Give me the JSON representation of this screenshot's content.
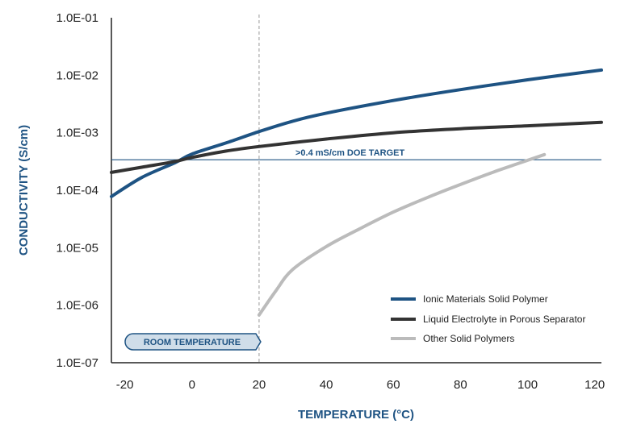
{
  "chart_data": {
    "type": "line",
    "title": "",
    "xlabel": "TEMPERATURE (°C)",
    "ylabel": "CONDUCTIVITY (S/cm)",
    "xlim": [
      -24,
      122
    ],
    "ylim_log10": [
      -7,
      -1
    ],
    "y_scale": "log",
    "x_ticks": [
      -20,
      0,
      20,
      40,
      60,
      80,
      100,
      120
    ],
    "x_tick_labels": [
      "-20",
      "0",
      "20",
      "40",
      "60",
      "80",
      "100",
      "120"
    ],
    "y_ticks_log10": [
      -7,
      -6,
      -5,
      -4,
      -3,
      -2,
      -1
    ],
    "y_tick_labels": [
      "1.0E-07",
      "1.0E-06",
      "1.0E-05",
      "1.0E-04",
      "1.0E-03",
      "1.0E-02",
      "1.0E-01"
    ],
    "grid": false,
    "legend_position": "bottom-right",
    "series": [
      {
        "name": "Ionic Materials Solid Polymer",
        "color": "#1e5383",
        "x": [
          -24,
          -15,
          -5,
          0,
          10,
          20,
          30,
          40,
          60,
          80,
          100,
          122
        ],
        "log10": [
          -4.11,
          -3.78,
          -3.52,
          -3.37,
          -3.18,
          -2.98,
          -2.8,
          -2.66,
          -2.44,
          -2.25,
          -2.08,
          -1.91
        ]
      },
      {
        "name": "Liquid Electrolyte in Porous Separator",
        "color": "#333333",
        "x": [
          -24,
          -15,
          -5,
          0,
          10,
          20,
          40,
          60,
          80,
          100,
          122
        ],
        "log10": [
          -3.69,
          -3.6,
          -3.5,
          -3.43,
          -3.32,
          -3.24,
          -3.11,
          -3.0,
          -2.93,
          -2.88,
          -2.82
        ]
      },
      {
        "name": "Other Solid Polymers",
        "color": "#bbbbbb",
        "x": [
          20,
          25,
          30,
          40,
          50,
          60,
          70,
          80,
          90,
          100,
          105
        ],
        "log10": [
          -6.17,
          -5.75,
          -5.38,
          -4.98,
          -4.67,
          -4.38,
          -4.13,
          -3.9,
          -3.68,
          -3.48,
          -3.38
        ]
      }
    ],
    "annotations": [
      {
        "type": "hline",
        "label": ">0.4 mS/cm DOE TARGET",
        "log10": -3.47,
        "color": "#1e5383"
      },
      {
        "type": "vline",
        "label": "ROOM TEMPERATURE",
        "x": 20,
        "color": "#999999",
        "badge_color": "#1e5383",
        "badge_fill": "#cfdde9"
      }
    ],
    "accent_color": "#1e5383"
  }
}
